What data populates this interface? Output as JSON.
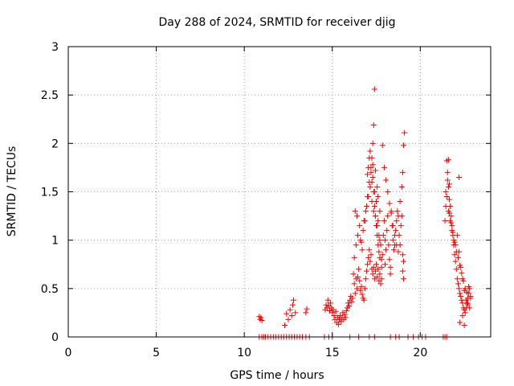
{
  "chart_data": {
    "type": "scatter",
    "title": "Day 288 of 2024, SRMTID for receiver djig",
    "xlabel": "GPS time / hours",
    "ylabel": "SRMTID / TECUs",
    "xlim": [
      0,
      24
    ],
    "ylim": [
      0,
      3
    ],
    "xticks": [
      0,
      5,
      10,
      15,
      20
    ],
    "xtick_labels": [
      "0",
      "5",
      "10",
      "15",
      "20"
    ],
    "yticks": [
      0,
      0.5,
      1,
      1.5,
      2,
      2.5,
      3
    ],
    "ytick_labels": [
      "0",
      "0.5",
      "1",
      "1.5",
      "2",
      "2.5",
      "3"
    ],
    "grid": true,
    "series": [
      {
        "name": "SRMTID",
        "color": "#ff0000",
        "marker": "plus",
        "x": [
          10.85,
          10.9,
          10.95,
          11.0,
          10.85,
          11.0,
          11.1,
          11.2,
          11.35,
          11.5,
          11.65,
          11.8,
          11.95,
          12.1,
          12.25,
          12.4,
          12.55,
          12.7,
          12.85,
          13.0,
          13.15,
          13.3,
          13.5,
          13.7,
          12.3,
          12.4,
          12.5,
          12.6,
          12.7,
          12.75,
          12.8,
          12.9,
          13.5,
          13.55,
          14.6,
          14.65,
          14.7,
          14.75,
          14.8,
          14.85,
          14.9,
          14.95,
          15.0,
          15.05,
          15.1,
          15.15,
          15.2,
          15.25,
          15.3,
          15.35,
          15.4,
          15.45,
          15.5,
          15.55,
          15.6,
          15.65,
          15.7,
          15.75,
          15.8,
          15.85,
          15.9,
          15.95,
          16.0,
          16.05,
          16.1,
          16.15,
          16.2,
          16.25,
          16.3,
          16.35,
          16.4,
          16.45,
          16.5,
          16.55,
          16.6,
          16.65,
          16.7,
          16.75,
          16.8,
          16.85,
          16.9,
          16.95,
          17.0,
          17.05,
          17.1,
          17.15,
          17.2,
          17.25,
          17.3,
          17.35,
          17.4,
          17.45,
          17.5,
          17.55,
          17.6,
          17.65,
          17.7,
          17.75,
          17.8,
          16.25,
          16.35,
          16.45,
          16.55,
          16.65,
          16.75,
          16.85,
          16.95,
          17.05,
          17.15,
          17.25,
          17.35,
          17.45,
          17.55,
          17.65,
          17.75,
          16.3,
          16.4,
          16.6,
          16.7,
          16.8,
          16.9,
          17.0,
          17.1,
          17.2,
          17.3,
          17.4,
          17.5,
          17.6,
          17.7,
          17.8,
          17.0,
          17.05,
          17.1,
          17.15,
          17.2,
          17.25,
          17.3,
          17.35,
          17.4,
          17.45,
          17.5,
          17.55,
          17.6,
          17.65,
          17.7,
          17.25,
          17.3,
          17.35,
          17.4,
          17.45,
          17.55,
          17.6,
          17.7,
          17.8,
          17.85,
          17.9,
          17.95,
          18.0,
          18.05,
          18.1,
          18.15,
          18.2,
          18.25,
          18.3,
          18.35,
          18.4,
          18.45,
          18.5,
          18.55,
          18.6,
          18.65,
          18.7,
          18.75,
          18.8,
          18.85,
          18.9,
          18.95,
          19.0,
          19.05,
          17.85,
          17.95,
          18.05,
          18.15,
          18.25,
          18.35,
          18.45,
          18.55,
          18.65,
          18.75,
          18.85,
          18.95,
          19.0,
          19.05,
          18.0,
          18.3,
          19.0,
          19.05,
          19.1,
          21.4,
          21.45,
          21.5,
          21.55,
          21.6,
          21.65,
          21.7,
          21.75,
          21.8,
          21.85,
          21.9,
          21.95,
          22.0,
          22.05,
          22.1,
          22.15,
          22.2,
          22.25,
          22.3,
          22.35,
          22.4,
          22.45,
          22.5,
          22.55,
          22.6,
          22.65,
          22.7,
          22.75,
          22.8,
          22.85,
          21.45,
          21.55,
          21.65,
          21.75,
          21.85,
          21.95,
          22.05,
          22.15,
          22.25,
          22.35,
          22.45,
          22.55,
          22.65,
          22.75,
          22.85,
          21.5,
          21.6,
          21.7,
          21.8,
          21.9,
          22.0,
          22.1,
          22.2,
          22.3,
          22.4,
          22.5,
          22.6,
          22.7,
          22.8,
          21.6,
          21.65,
          22.2,
          22.25,
          22.4,
          22.5,
          14.55,
          14.8,
          15.0,
          16.0,
          16.5,
          17.1,
          17.4,
          18.3,
          18.6,
          18.8,
          19.3,
          19.6,
          19.9,
          20.1,
          20.3,
          21.3,
          21.4,
          21.5
        ],
        "y": [
          0.21,
          0.18,
          0.2,
          0.17,
          0.0,
          0.0,
          0.0,
          0.0,
          0.0,
          0.0,
          0.0,
          0.0,
          0.0,
          0.0,
          0.0,
          0.0,
          0.0,
          0.0,
          0.0,
          0.0,
          0.0,
          0.0,
          0.0,
          0.0,
          0.12,
          0.24,
          0.18,
          0.28,
          0.22,
          0.33,
          0.38,
          0.25,
          0.25,
          0.29,
          0.28,
          0.33,
          0.3,
          0.38,
          0.32,
          0.27,
          0.35,
          0.3,
          0.25,
          0.28,
          0.22,
          0.18,
          0.26,
          0.15,
          0.2,
          0.13,
          0.18,
          0.22,
          0.16,
          0.2,
          0.25,
          0.18,
          0.23,
          0.2,
          0.27,
          0.3,
          0.35,
          0.32,
          0.38,
          0.42,
          0.36,
          0.4,
          0.65,
          0.55,
          0.45,
          0.6,
          0.5,
          0.62,
          0.7,
          0.58,
          0.48,
          0.52,
          0.44,
          0.4,
          0.38,
          0.5,
          0.6,
          0.68,
          0.75,
          0.82,
          0.9,
          0.78,
          0.85,
          0.7,
          0.65,
          0.72,
          0.6,
          0.68,
          0.75,
          0.62,
          0.7,
          0.58,
          0.65,
          0.55,
          0.6,
          0.82,
          0.95,
          1.05,
          1.15,
          0.98,
          1.1,
          1.2,
          1.35,
          1.45,
          1.55,
          1.4,
          1.3,
          1.25,
          1.15,
          1.05,
          0.95,
          1.3,
          1.25,
          1.0,
          0.9,
          1.2,
          1.3,
          1.45,
          1.6,
          1.7,
          1.78,
          1.5,
          1.4,
          1.2,
          1.0,
          0.8,
          1.68,
          1.75,
          1.85,
          1.92,
          1.75,
          1.6,
          1.65,
          1.5,
          1.35,
          1.25,
          1.15,
          1.05,
          0.95,
          0.88,
          0.82,
          1.85,
          2.0,
          2.19,
          2.56,
          1.72,
          1.55,
          1.45,
          1.3,
          0.72,
          0.85,
          1.05,
          1.2,
          1.0,
          0.9,
          1.1,
          1.25,
          0.95,
          0.8,
          0.72,
          1.3,
          1.15,
          1.0,
          0.9,
          0.95,
          1.1,
          1.2,
          1.3,
          1.25,
          1.05,
          0.95,
          1.15,
          1.25,
          0.85,
          0.78,
          1.98,
          1.75,
          1.62,
          1.5,
          1.38,
          1.28,
          1.15,
          1.05,
          0.95,
          0.88,
          1.4,
          1.55,
          1.7,
          1.98,
          0.75,
          0.65,
          0.68,
          0.6,
          2.11,
          1.2,
          1.5,
          1.82,
          1.7,
          1.55,
          1.42,
          1.35,
          1.25,
          1.15,
          1.05,
          0.95,
          0.85,
          0.78,
          0.7,
          0.6,
          0.55,
          0.5,
          0.45,
          0.42,
          0.38,
          0.35,
          0.3,
          0.28,
          0.25,
          0.3,
          0.35,
          0.4,
          0.45,
          0.5,
          0.42,
          1.35,
          1.62,
          1.28,
          1.18,
          1.08,
          0.98,
          0.88,
          0.82,
          0.74,
          0.66,
          0.58,
          0.5,
          0.46,
          0.52,
          0.4,
          1.45,
          1.3,
          1.2,
          1.1,
          1.0,
          0.95,
          1.05,
          0.88,
          0.72,
          0.6,
          0.48,
          0.38,
          0.34,
          0.3,
          1.83,
          1.58,
          1.65,
          0.15,
          0.22,
          0.12,
          0.0,
          0.0,
          0.0,
          0.0,
          0.0,
          0.0,
          0.0,
          0.0,
          0.0,
          0.0,
          0.0,
          0.0,
          0.0,
          0.0,
          0.0,
          0.0,
          0.0,
          0.0
        ]
      }
    ]
  }
}
